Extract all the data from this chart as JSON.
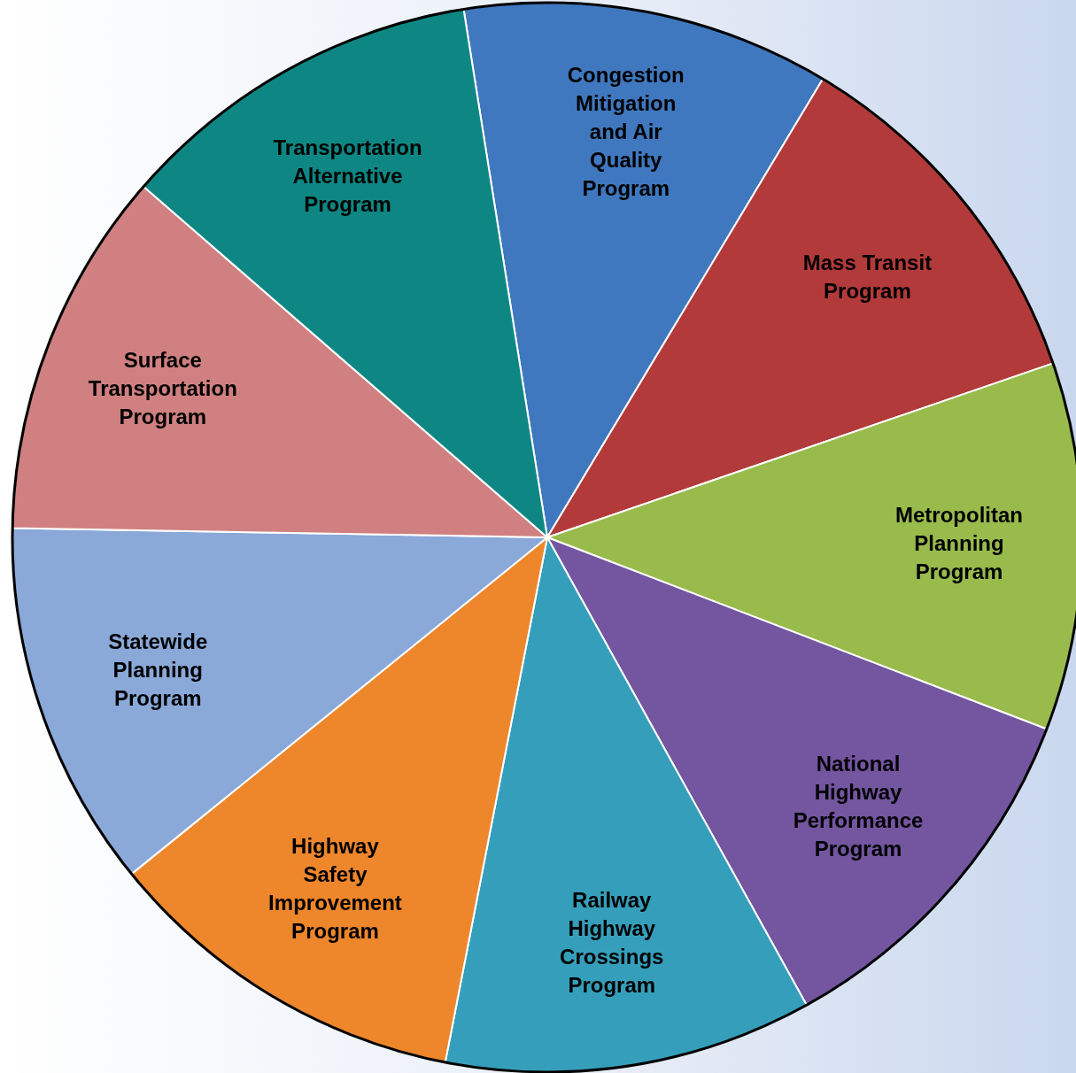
{
  "chart_data": {
    "type": "pie",
    "categories": [
      "Congestion Mitigation and Air Quality Program",
      "Mass Transit Program",
      "Metropolitan Planning Program",
      "National Highway Performance Program",
      "Railway Highway Crossings Program",
      "Highway Safety Improvement Program",
      "Statewide Planning Program",
      "Surface Transportation Program",
      "Transportation Alternative Program"
    ],
    "values": [
      11.11,
      11.11,
      11.11,
      11.11,
      11.11,
      11.11,
      11.11,
      11.11,
      11.11
    ],
    "colors": [
      "#3f78bf",
      "#b33a3a",
      "#98bb4c",
      "#7355a0",
      "#359fbb",
      "#ee862c",
      "#8aa8d8",
      "#d08080",
      "#0e8784"
    ],
    "legend": false
  }
}
